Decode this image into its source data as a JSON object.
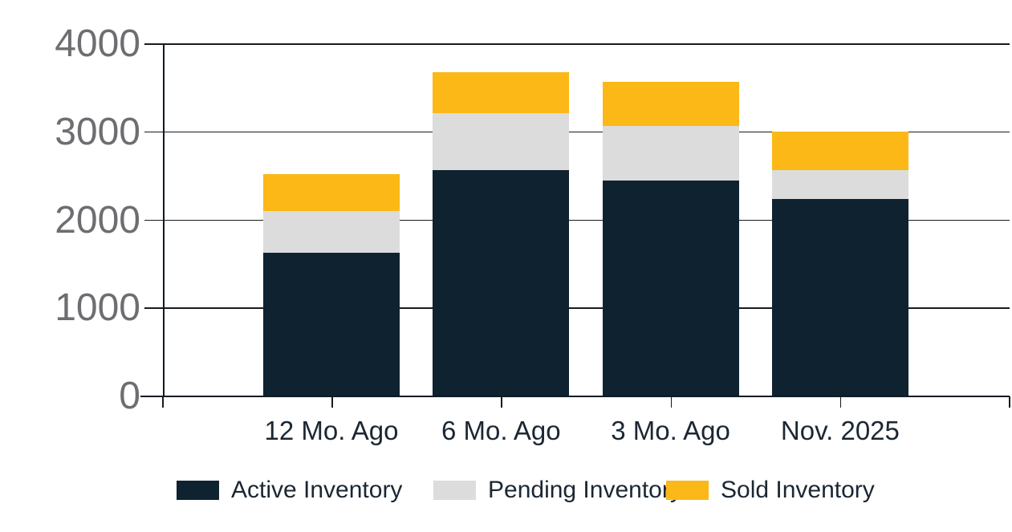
{
  "chart_data": {
    "type": "bar",
    "stacked": true,
    "title": "",
    "categories": [
      "12 Mo. Ago",
      "6 Mo. Ago",
      "3 Mo. Ago",
      "Nov. 2025"
    ],
    "series": [
      {
        "name": "Active Inventory",
        "color": "#0f2230",
        "values": [
          1620,
          2560,
          2440,
          2230
        ]
      },
      {
        "name": "Pending Inventory",
        "color": "#dcdcdc",
        "values": [
          475,
          650,
          620,
          335
        ]
      },
      {
        "name": "Sold Inventory",
        "color": "#fbb817",
        "values": [
          420,
          460,
          500,
          435
        ]
      }
    ],
    "totals": [
      2515,
      3670,
      3560,
      3000
    ],
    "xlabel": "",
    "ylabel": "",
    "ylim": [
      0,
      4000
    ],
    "y_ticks": [
      0,
      1000,
      2000,
      3000,
      4000
    ],
    "y_tick_labels": [
      "0",
      "1000",
      "2000",
      "3000",
      "4000"
    ],
    "grid": "horizontal",
    "legend_position": "bottom",
    "colors": {
      "background": "#ffffff",
      "grid_line": "#1a1a1a",
      "axis_line": "#0d1a24",
      "y_tick_label": "#6d6e71",
      "category_label": "#1b2733",
      "legend_text": "#1b2733"
    }
  }
}
